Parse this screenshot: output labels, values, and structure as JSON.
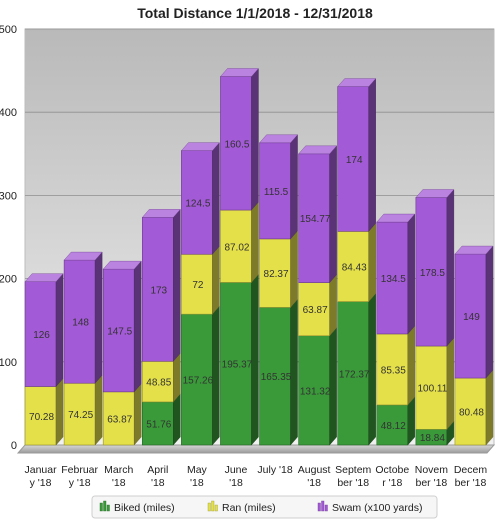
{
  "chart_data": {
    "type": "bar",
    "stacked": true,
    "title": "Total Distance 1/1/2018 - 12/31/2018",
    "categories": [
      [
        "Januar",
        "y '18"
      ],
      [
        "Februar",
        "y '18"
      ],
      [
        "March",
        "'18"
      ],
      [
        "April",
        "'18"
      ],
      [
        "May",
        "'18"
      ],
      [
        "June",
        "'18"
      ],
      [
        "July '18"
      ],
      [
        "August",
        "'18"
      ],
      [
        "Septem",
        "ber '18"
      ],
      [
        "Octobe",
        "r '18"
      ],
      [
        "Novem",
        "ber '18"
      ],
      [
        "Decem",
        "ber '18"
      ]
    ],
    "ylim": [
      0,
      500
    ],
    "yticks": [
      0,
      100,
      200,
      300,
      400,
      500
    ],
    "grid": true,
    "legend_position": "bottom",
    "series": [
      {
        "name": "Biked (miles)",
        "color": "#3a9a3a",
        "values": [
          0,
          0,
          0,
          51.76,
          157.26,
          195.37,
          165.35,
          131.32,
          172.37,
          48.12,
          18.84,
          0
        ],
        "labels": [
          "",
          "",
          "",
          "51.76",
          "157.26",
          "195.37",
          "165.35",
          "131.32",
          "172.37",
          "48.12",
          "18.84",
          ""
        ]
      },
      {
        "name": "Ran (miles)",
        "color": "#e4e04a",
        "values": [
          70.28,
          74.25,
          63.87,
          48.85,
          72,
          87.02,
          82.37,
          63.87,
          84.43,
          85.35,
          100.11,
          80.48
        ],
        "labels": [
          "70.28",
          "74.25",
          "63.87",
          "48.85",
          "72",
          "87.02",
          "82.37",
          "63.87",
          "84.43",
          "85.35",
          "100.11",
          "80.48"
        ]
      },
      {
        "name": "Swam (x100 yards)",
        "color": "#a35ad6",
        "values": [
          126,
          148,
          147.5,
          173,
          124.5,
          160.5,
          115.5,
          154.77,
          174,
          134.5,
          178.5,
          149
        ],
        "labels": [
          "126",
          "148",
          "147.5",
          "173",
          "124.5",
          "160.5",
          "115.5",
          "154.77",
          "174",
          "134.5",
          "178.5",
          "149"
        ]
      }
    ]
  }
}
